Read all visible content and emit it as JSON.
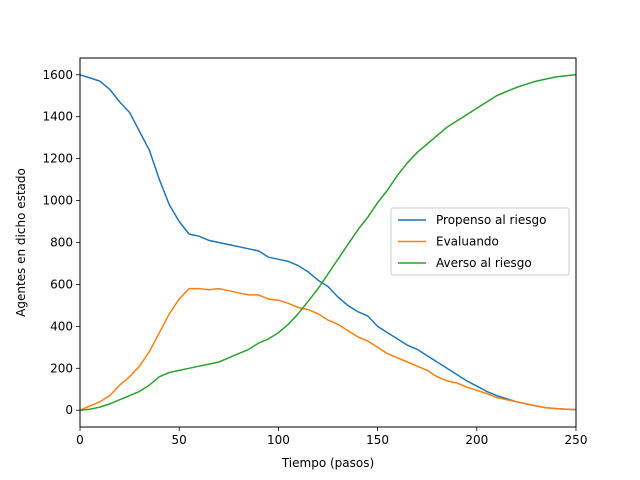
{
  "chart_data": {
    "type": "line",
    "title": "",
    "xlabel": "Tiempo (pasos)",
    "ylabel": "Agentes en dicho estado",
    "xlim": [
      0,
      250
    ],
    "ylim": [
      -80,
      1680
    ],
    "xticks": [
      0,
      50,
      100,
      150,
      200,
      250
    ],
    "yticks": [
      0,
      200,
      400,
      600,
      800,
      1000,
      1200,
      1400,
      1600
    ],
    "grid": false,
    "legend_position": "center-right",
    "x": [
      0,
      5,
      10,
      15,
      20,
      25,
      30,
      35,
      40,
      45,
      50,
      55,
      60,
      65,
      70,
      75,
      80,
      85,
      90,
      95,
      100,
      105,
      110,
      115,
      120,
      125,
      130,
      135,
      140,
      145,
      150,
      155,
      160,
      165,
      170,
      175,
      180,
      185,
      190,
      195,
      200,
      205,
      210,
      215,
      220,
      225,
      230,
      235,
      240,
      245,
      250
    ],
    "series": [
      {
        "name": "Propenso al riesgo",
        "color": "#1f77b4",
        "values": [
          1600,
          1585,
          1570,
          1530,
          1470,
          1420,
          1330,
          1240,
          1100,
          980,
          900,
          840,
          830,
          810,
          800,
          790,
          780,
          770,
          760,
          730,
          720,
          710,
          690,
          660,
          620,
          590,
          540,
          500,
          470,
          450,
          400,
          370,
          340,
          310,
          290,
          260,
          230,
          200,
          170,
          140,
          115,
          90,
          70,
          55,
          40,
          30,
          20,
          12,
          8,
          5,
          3
        ]
      },
      {
        "name": "Evaluando",
        "color": "#ff7f0e",
        "values": [
          0,
          20,
          40,
          70,
          120,
          160,
          210,
          280,
          370,
          460,
          530,
          580,
          580,
          575,
          580,
          570,
          560,
          550,
          550,
          530,
          525,
          510,
          490,
          480,
          460,
          430,
          410,
          380,
          350,
          330,
          300,
          270,
          250,
          230,
          210,
          190,
          160,
          140,
          130,
          110,
          95,
          80,
          60,
          50,
          40,
          30,
          20,
          12,
          8,
          5,
          3
        ]
      },
      {
        "name": "Averso al riesgo",
        "color": "#2ca02c",
        "values": [
          0,
          5,
          15,
          30,
          50,
          70,
          90,
          120,
          160,
          180,
          190,
          200,
          210,
          220,
          230,
          250,
          270,
          290,
          320,
          340,
          370,
          410,
          460,
          520,
          580,
          650,
          720,
          790,
          860,
          920,
          990,
          1050,
          1120,
          1180,
          1230,
          1270,
          1310,
          1350,
          1380,
          1410,
          1440,
          1470,
          1500,
          1520,
          1540,
          1555,
          1570,
          1580,
          1590,
          1595,
          1600
        ]
      }
    ]
  }
}
